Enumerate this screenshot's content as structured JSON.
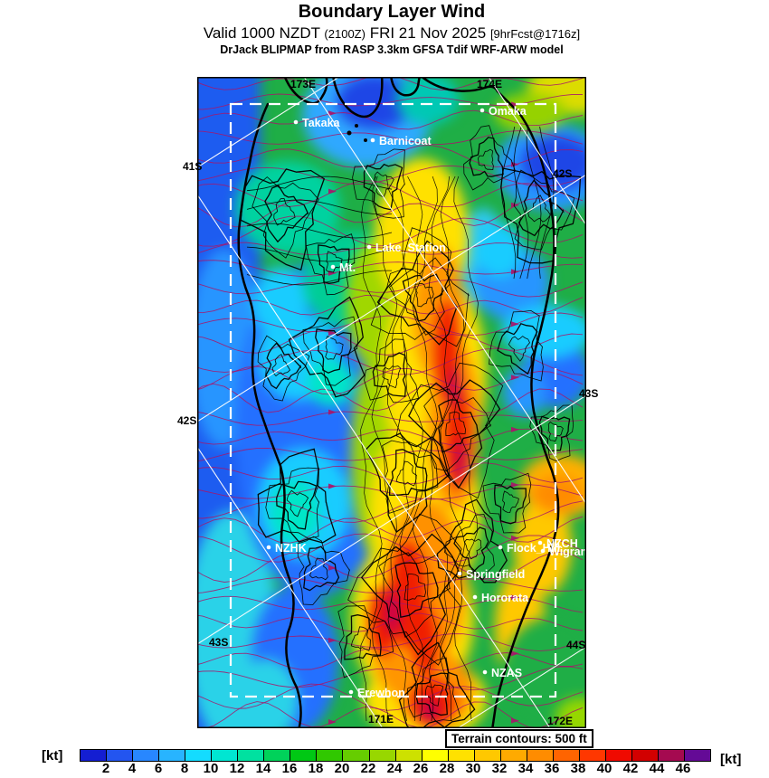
{
  "header": {
    "title": "Boundary Layer Wind",
    "valid_main": "Valid 1000 NZDT",
    "valid_zulu": "(2100Z)",
    "valid_date": "FRI 21 Nov 2025",
    "forecast_tag": "[9hrFcst@1716z]",
    "model_line": "DrJack BLIPMAP from RASP 3.3km GFSA Tdif WRF-ARW model"
  },
  "map": {
    "terrain_note": "Terrain contours: 500 ft",
    "stations": [
      {
        "label": "Takaka"
      },
      {
        "label": "Barnicoat"
      },
      {
        "label": "Omaka"
      },
      {
        "label": "Lake_Station"
      },
      {
        "label": "Mt."
      },
      {
        "label": "NZHK"
      },
      {
        "label": "Flock_Hill"
      },
      {
        "label": "NZCH"
      },
      {
        "label": "Wigram"
      },
      {
        "label": "Springfield"
      },
      {
        "label": "Hororata"
      },
      {
        "label": "NZAS"
      },
      {
        "label": "Erewhon"
      }
    ],
    "grid_labels": {
      "lat_41_left": "41S",
      "lat_42_left": "42S",
      "lat_42_right": "42S",
      "lat_43_right": "43S",
      "lat_43_bottom_left": "43S",
      "lat_44_right": "44S",
      "lon_173_top": "173E",
      "lon_174_top": "174E",
      "lon_171_bottom": "171E",
      "lon_172_bottom": "172E"
    }
  },
  "colorbar": {
    "unit": "[kt]",
    "ticks": [
      2,
      4,
      6,
      8,
      10,
      12,
      14,
      16,
      18,
      20,
      22,
      24,
      26,
      28,
      30,
      32,
      34,
      36,
      38,
      40,
      42,
      44,
      46
    ],
    "colors": [
      "#141ed2",
      "#2355f0",
      "#2887ff",
      "#28b4ff",
      "#14dcff",
      "#00e6d2",
      "#00e1a0",
      "#00d25a",
      "#00c814",
      "#30c800",
      "#66cd00",
      "#98d700",
      "#cde100",
      "#ffff00",
      "#ffe100",
      "#ffc800",
      "#ffaa00",
      "#ff8c00",
      "#ff6400",
      "#ff3700",
      "#f00a00",
      "#d20000",
      "#a50a50",
      "#640a96"
    ]
  },
  "chart_data": {
    "type": "heatmap",
    "title": "Boundary Layer Wind",
    "units": "kt",
    "legend_ticks": [
      2,
      4,
      6,
      8,
      10,
      12,
      14,
      16,
      18,
      20,
      22,
      24,
      26,
      28,
      30,
      32,
      34,
      36,
      38,
      40,
      42,
      44,
      46
    ],
    "x_tick_labels": [
      "171E",
      "172E",
      "173E",
      "174E"
    ],
    "y_tick_labels": [
      "41S",
      "42S",
      "43S",
      "44S"
    ],
    "annotations": [
      "Terrain contours: 500 ft"
    ],
    "legend_position": "bottom"
  }
}
